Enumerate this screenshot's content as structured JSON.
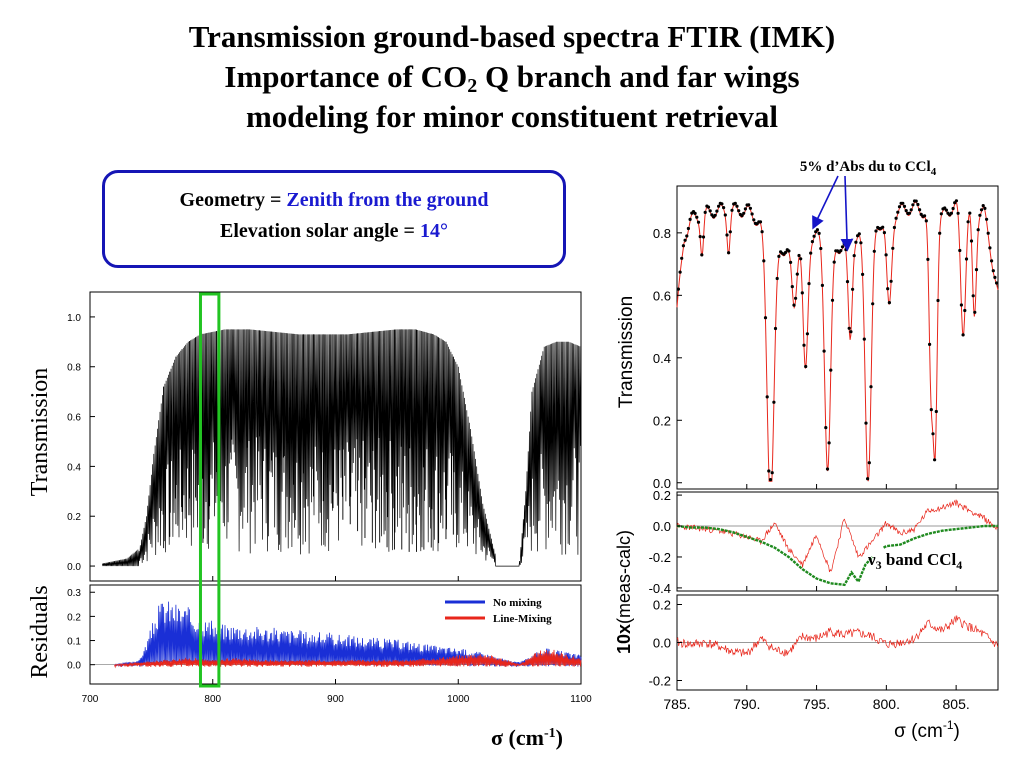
{
  "title": {
    "line1": "Transmission ground-based spectra FTIR (IMK)",
    "line2_pre": "Importance of CO",
    "line2_sub": "2",
    "line2_post": " Q branch and far wings",
    "line3": "modeling for minor constituent retrieval"
  },
  "geometry": {
    "label1": "Geometry = ",
    "value1": "Zenith from the ground",
    "label2": "Elevation solar angle = ",
    "value2": "14°"
  },
  "colors": {
    "title_box_border": "#1515b5",
    "accent_text": "#1a1ad0",
    "no_mixing": "#1a2fd6",
    "line_mixing": "#e8261b",
    "highlight_box": "#22c422",
    "model_line": "#e8261b",
    "ccl4_residual": "#1f8a1f"
  },
  "chart_data": [
    {
      "id": "left-transmission",
      "type": "line",
      "ylabel": "Transmission",
      "xlim": [
        700,
        1100
      ],
      "ylim": [
        -0.06,
        1.1
      ],
      "yticks": [
        "0.0",
        "0.2",
        "0.4",
        "0.6",
        "0.8",
        "1.0"
      ],
      "highlight_range": [
        790,
        805
      ],
      "series": [
        {
          "color": "#000000",
          "envelope_x": [
            710,
            730,
            740,
            746,
            752,
            760,
            770,
            780,
            790,
            800,
            810,
            820,
            830,
            850,
            870,
            890,
            910,
            930,
            950,
            965,
            980,
            990,
            1000,
            1010,
            1020,
            1030,
            1040,
            1050,
            1055,
            1060,
            1070,
            1080,
            1090,
            1100
          ],
          "envelope_top": [
            0.0,
            0.02,
            0.06,
            0.2,
            0.45,
            0.72,
            0.84,
            0.9,
            0.93,
            0.94,
            0.95,
            0.95,
            0.95,
            0.94,
            0.93,
            0.93,
            0.93,
            0.94,
            0.95,
            0.95,
            0.93,
            0.9,
            0.8,
            0.55,
            0.25,
            0.05,
            0.0,
            0.02,
            0.3,
            0.7,
            0.88,
            0.9,
            0.9,
            0.88
          ],
          "absorption_lines": [
            {
              "x": 760,
              "depth": 0.9
            },
            {
              "x": 765,
              "depth": 0.85
            },
            {
              "x": 770,
              "depth": 0.8
            },
            {
              "x": 775,
              "depth": 0.75
            },
            {
              "x": 781,
              "depth": 0.7
            },
            {
              "x": 786,
              "depth": 0.7
            },
            {
              "x": 792,
              "depth": 0.9
            },
            {
              "x": 797,
              "depth": 0.8
            },
            {
              "x": 803,
              "depth": 0.6
            },
            {
              "x": 815,
              "depth": 0.55
            },
            {
              "x": 828,
              "depth": 0.5
            },
            {
              "x": 838,
              "depth": 0.45
            },
            {
              "x": 848,
              "depth": 0.55
            },
            {
              "x": 858,
              "depth": 0.6
            },
            {
              "x": 866,
              "depth": 0.65
            },
            {
              "x": 874,
              "depth": 0.6
            },
            {
              "x": 882,
              "depth": 0.7
            },
            {
              "x": 890,
              "depth": 0.72
            },
            {
              "x": 898,
              "depth": 0.75
            },
            {
              "x": 906,
              "depth": 0.8
            },
            {
              "x": 912,
              "depth": 0.82
            },
            {
              "x": 918,
              "depth": 0.85
            },
            {
              "x": 924,
              "depth": 0.88
            },
            {
              "x": 930,
              "depth": 0.9
            },
            {
              "x": 936,
              "depth": 0.9
            },
            {
              "x": 942,
              "depth": 0.92
            },
            {
              "x": 948,
              "depth": 0.93
            },
            {
              "x": 954,
              "depth": 0.93
            },
            {
              "x": 960,
              "depth": 0.94
            },
            {
              "x": 966,
              "depth": 0.94
            },
            {
              "x": 972,
              "depth": 0.93
            },
            {
              "x": 978,
              "depth": 0.92
            },
            {
              "x": 984,
              "depth": 0.9
            },
            {
              "x": 990,
              "depth": 0.88
            },
            {
              "x": 996,
              "depth": 0.85
            }
          ]
        }
      ]
    },
    {
      "id": "left-residuals",
      "type": "line",
      "ylabel": "Residuals",
      "xlabel": "σ (cm",
      "xlabel_sup": "-1",
      "xlabel_post": ")",
      "xlim": [
        700,
        1100
      ],
      "ylim": [
        -0.08,
        0.33
      ],
      "xticks": [
        "700",
        "800",
        "900",
        "1000",
        "1100"
      ],
      "yticks": [
        "0.0",
        "0.1",
        "0.2",
        "0.3"
      ],
      "highlight_range": [
        790,
        805
      ],
      "series": [
        {
          "name": "No mixing",
          "color": "#1a2fd6",
          "x": [
            720,
            730,
            740,
            745,
            750,
            755,
            760,
            765,
            770,
            780,
            790,
            800,
            810,
            820,
            840,
            860,
            880,
            900,
            920,
            940,
            960,
            980,
            1000,
            1020,
            1040,
            1050,
            1060,
            1070,
            1080,
            1090,
            1100
          ],
          "upper": [
            0.0,
            0.01,
            0.02,
            0.08,
            0.16,
            0.24,
            0.28,
            0.27,
            0.26,
            0.24,
            0.2,
            0.18,
            0.17,
            0.17,
            0.16,
            0.15,
            0.14,
            0.13,
            0.12,
            0.11,
            0.1,
            0.08,
            0.07,
            0.05,
            0.02,
            0.01,
            0.04,
            0.07,
            0.06,
            0.05,
            0.04
          ]
        },
        {
          "name": "Line-Mixing",
          "color": "#e8261b",
          "x": [
            720,
            740,
            760,
            780,
            800,
            820,
            840,
            860,
            880,
            900,
            920,
            940,
            960,
            980,
            1000,
            1020,
            1040,
            1050,
            1060,
            1070,
            1080,
            1090,
            1100
          ],
          "upper": [
            0.0,
            0.01,
            0.02,
            0.03,
            0.02,
            0.03,
            0.02,
            0.02,
            0.02,
            0.02,
            0.02,
            0.02,
            0.02,
            0.03,
            0.04,
            0.05,
            0.02,
            0.0,
            0.04,
            0.07,
            0.06,
            0.04,
            0.03
          ]
        }
      ]
    },
    {
      "id": "right-transmission",
      "type": "line",
      "ylabel": "Transmission",
      "xlim": [
        785,
        808
      ],
      "ylim": [
        -0.02,
        0.95
      ],
      "yticks": [
        "0.0",
        "0.2",
        "0.4",
        "0.6",
        "0.8"
      ],
      "annotation": {
        "text": "5% d’Abs du to CCl",
        "sub": "4",
        "arrow_x": [
          794.8,
          797.2
        ],
        "arrow_y": [
          0.82,
          0.75
        ]
      },
      "series": [
        {
          "name": "measured",
          "color": "#000000",
          "style": "points",
          "baseline_x": [
            785,
            785.5,
            786,
            787,
            788,
            789,
            790,
            791,
            792,
            793,
            794,
            795,
            796,
            797,
            798,
            799,
            800,
            801,
            802,
            803,
            804,
            805,
            806,
            807,
            808
          ],
          "baseline_y": [
            0.55,
            0.78,
            0.84,
            0.86,
            0.87,
            0.87,
            0.87,
            0.83,
            0.76,
            0.74,
            0.8,
            0.79,
            0.76,
            0.75,
            0.78,
            0.8,
            0.85,
            0.87,
            0.88,
            0.86,
            0.85,
            0.89,
            0.88,
            0.87,
            0.6
          ],
          "lines": [
            {
              "x": 786.8,
              "depth": 0.12,
              "w": 0.15
            },
            {
              "x": 788.7,
              "depth": 0.12,
              "w": 0.15
            },
            {
              "x": 791.7,
              "depth": 0.83,
              "w": 0.35
            },
            {
              "x": 793.4,
              "depth": 0.2,
              "w": 0.25
            },
            {
              "x": 794.2,
              "depth": 0.45,
              "w": 0.25
            },
            {
              "x": 795.8,
              "depth": 0.72,
              "w": 0.3
            },
            {
              "x": 797.4,
              "depth": 0.3,
              "w": 0.2
            },
            {
              "x": 798.7,
              "depth": 0.78,
              "w": 0.3
            },
            {
              "x": 800.2,
              "depth": 0.3,
              "w": 0.25
            },
            {
              "x": 803.2,
              "depth": 0.55,
              "w": 0.2
            },
            {
              "x": 803.5,
              "depth": 0.7,
              "w": 0.2
            },
            {
              "x": 805.5,
              "depth": 0.4,
              "w": 0.25
            },
            {
              "x": 806.3,
              "depth": 0.35,
              "w": 0.2
            }
          ]
        },
        {
          "name": "model",
          "color": "#e8261b",
          "style": "line"
        }
      ]
    },
    {
      "id": "right-residual-1",
      "type": "line",
      "ylabel": "10x(meas-calc)",
      "ylabel_bold": "10x",
      "ylabel_rest": "(meas-calc)",
      "xlim": [
        785,
        808
      ],
      "ylim": [
        -0.42,
        0.22
      ],
      "yticks": [
        "-0.4",
        "-0.2",
        "0.0",
        "0.2"
      ],
      "annotation": {
        "text": "ν",
        "sub": "3",
        "post": " band CCl",
        "sub2": "4"
      },
      "series": [
        {
          "name": "residual",
          "color": "#e8261b",
          "x": [
            785,
            786,
            787,
            788,
            789,
            790,
            791,
            792,
            793,
            794,
            795,
            796,
            797,
            798,
            799,
            800,
            801,
            802,
            803,
            804,
            805,
            806,
            807,
            808
          ],
          "y": [
            0.0,
            -0.01,
            -0.02,
            -0.03,
            -0.05,
            -0.07,
            -0.1,
            0.02,
            -0.15,
            -0.25,
            -0.05,
            -0.3,
            0.05,
            -0.2,
            -0.1,
            0.02,
            -0.05,
            -0.02,
            0.1,
            0.12,
            0.15,
            0.1,
            0.05,
            -0.02
          ]
        },
        {
          "name": "CCl4",
          "color": "#1f8a1f",
          "x": [
            785,
            786,
            787,
            788,
            789,
            790,
            791,
            792,
            793,
            794,
            795,
            796,
            797,
            797.5,
            798,
            798.5,
            799
          ],
          "y": [
            0.0,
            -0.01,
            -0.01,
            -0.02,
            -0.04,
            -0.07,
            -0.1,
            -0.14,
            -0.2,
            -0.28,
            -0.34,
            -0.37,
            -0.38,
            -0.3,
            -0.36,
            -0.25,
            -0.2
          ],
          "x2": [
            799.8,
            800,
            801,
            802,
            803,
            804,
            805,
            806,
            807,
            808
          ],
          "y2": [
            -0.14,
            -0.13,
            -0.12,
            -0.08,
            -0.05,
            -0.03,
            -0.02,
            -0.01,
            0.0,
            0.0
          ]
        }
      ]
    },
    {
      "id": "right-residual-2",
      "type": "line",
      "xlabel": "σ  (cm",
      "xlabel_sup": "-1",
      "xlabel_post": ")",
      "xlim": [
        785,
        808
      ],
      "ylim": [
        -0.25,
        0.25
      ],
      "xticks": [
        "785.",
        "790.",
        "795.",
        "800.",
        "805."
      ],
      "yticks": [
        "-0.2",
        "0.0",
        "0.2"
      ],
      "series": [
        {
          "name": "residual",
          "color": "#e8261b",
          "x": [
            785,
            786,
            787,
            788,
            789,
            790,
            791,
            792,
            793,
            794,
            795,
            796,
            797,
            798,
            799,
            800,
            801,
            802,
            803,
            804,
            805,
            806,
            807,
            808
          ],
          "y": [
            0.0,
            -0.01,
            0.0,
            -0.02,
            -0.05,
            -0.06,
            0.02,
            -0.04,
            -0.05,
            0.03,
            0.02,
            0.06,
            0.04,
            0.05,
            0.03,
            -0.01,
            0.0,
            0.02,
            0.1,
            0.06,
            0.12,
            0.08,
            0.04,
            -0.02
          ]
        }
      ]
    }
  ]
}
